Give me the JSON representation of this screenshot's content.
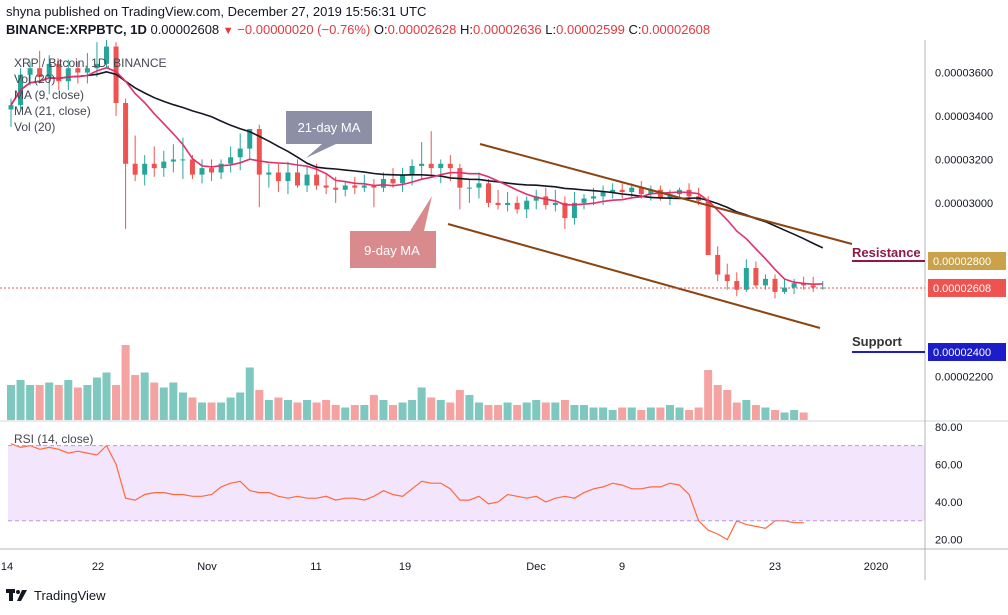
{
  "header": {
    "published": "shyna published on TradingView.com, December 27, 2019 15:56:31 UTC",
    "symbol": "BINANCE:XRPBTC, 1D",
    "last": "0.00002608",
    "change": "−0.00000020 (−0.76%)",
    "o_label": "O:",
    "o": "0.00002628",
    "h_label": "H:",
    "h": "0.00002636",
    "l_label": "L:",
    "l": "0.00002599",
    "c_label": "C:",
    "c": "0.00002608"
  },
  "indicators": {
    "title": "XRP / Bitcoin, 1D, BINANCE",
    "vol1": "Vol (20)",
    "ma9": "MA (9, close)",
    "ma21": "MA (21, close)",
    "vol2": "Vol (20)",
    "rsi": "RSI (14, close)"
  },
  "annotations": {
    "ma21_label": "21-day MA",
    "ma9_label": "9-day MA",
    "resistance": "Resistance",
    "support": "Support"
  },
  "price_axis": {
    "ticks": [
      "0.00003600",
      "0.00003400",
      "0.00003200",
      "0.00003000",
      "0.00002200"
    ],
    "resistance_price": "0.00002800",
    "last_price": "0.00002608",
    "support_price": "0.00002400"
  },
  "rsi_axis": {
    "ticks": [
      "80.00",
      "60.00",
      "40.00",
      "20.00"
    ]
  },
  "time_axis": {
    "ticks": [
      "14",
      "22",
      "Nov",
      "11",
      "19",
      "Dec",
      "9",
      "23",
      "2020"
    ]
  },
  "footer": {
    "brand": "TradingView"
  },
  "colors": {
    "up": "#26a69a",
    "down": "#ef5350",
    "ma9": "#e0306a",
    "ma21": "#131722",
    "channel": "#8b4513",
    "resistance": "#8b1a4a",
    "support": "#1c1cc8",
    "rsi_line": "#ff6a3d",
    "rsi_band": "#f3e5fc"
  },
  "chart_data": {
    "type": "candlestick",
    "symbol": "XRPBTC",
    "interval": "1D",
    "price_range": [
      2e-05,
      3.75e-05
    ],
    "x_axis_labels": [
      "14",
      "22",
      "Nov",
      "11",
      "19",
      "Dec",
      "9",
      "23",
      "2020"
    ],
    "candles_ohlc": [
      [
        3.43e-05,
        3.48e-05,
        3.35e-05,
        3.45e-05
      ],
      [
        3.45e-05,
        3.62e-05,
        3.43e-05,
        3.59e-05
      ],
      [
        3.59e-05,
        3.65e-05,
        3.54e-05,
        3.62e-05
      ],
      [
        3.62e-05,
        3.7e-05,
        3.55e-05,
        3.58e-05
      ],
      [
        3.58e-05,
        3.68e-05,
        3.5e-05,
        3.64e-05
      ],
      [
        3.64e-05,
        3.66e-05,
        3.52e-05,
        3.56e-05
      ],
      [
        3.56e-05,
        3.66e-05,
        3.52e-05,
        3.62e-05
      ],
      [
        3.62e-05,
        3.65e-05,
        3.55e-05,
        3.6e-05
      ],
      [
        3.6e-05,
        3.69e-05,
        3.55e-05,
        3.62e-05
      ],
      [
        3.62e-05,
        3.74e-05,
        3.58e-05,
        3.64e-05
      ],
      [
        3.64e-05,
        3.75e-05,
        3.62e-05,
        3.72e-05
      ],
      [
        3.72e-05,
        3.74e-05,
        3.4e-05,
        3.46e-05
      ],
      [
        3.46e-05,
        3.48e-05,
        2.88e-05,
        3.18e-05
      ],
      [
        3.18e-05,
        3.31e-05,
        3.1e-05,
        3.13e-05
      ],
      [
        3.13e-05,
        3.22e-05,
        3.08e-05,
        3.18e-05
      ],
      [
        3.18e-05,
        3.26e-05,
        3.12e-05,
        3.16e-05
      ],
      [
        3.16e-05,
        3.24e-05,
        3.12e-05,
        3.19e-05
      ],
      [
        3.19e-05,
        3.27e-05,
        3.14e-05,
        3.2e-05
      ],
      [
        3.2e-05,
        3.3e-05,
        3.11e-05,
        3.2e-05
      ],
      [
        3.2e-05,
        3.22e-05,
        3.11e-05,
        3.13e-05
      ],
      [
        3.13e-05,
        3.2e-05,
        3.09e-05,
        3.16e-05
      ],
      [
        3.16e-05,
        3.2e-05,
        3.1e-05,
        3.14e-05
      ],
      [
        3.14e-05,
        3.2e-05,
        3.11e-05,
        3.18e-05
      ],
      [
        3.18e-05,
        3.26e-05,
        3.14e-05,
        3.21e-05
      ],
      [
        3.21e-05,
        3.32e-05,
        3.15e-05,
        3.25e-05
      ],
      [
        3.25e-05,
        3.34e-05,
        3.2e-05,
        3.34e-05
      ],
      [
        3.34e-05,
        3.36e-05,
        2.98e-05,
        3.13e-05
      ],
      [
        3.13e-05,
        3.18e-05,
        3.07e-05,
        3.14e-05
      ],
      [
        3.14e-05,
        3.18e-05,
        3.05e-05,
        3.1e-05
      ],
      [
        3.1e-05,
        3.19e-05,
        3.04e-05,
        3.14e-05
      ],
      [
        3.14e-05,
        3.2e-05,
        3.07e-05,
        3.08e-05
      ],
      [
        3.08e-05,
        3.17e-05,
        3.05e-05,
        3.13e-05
      ],
      [
        3.13e-05,
        3.18e-05,
        3.06e-05,
        3.08e-05
      ],
      [
        3.08e-05,
        3.13e-05,
        3.04e-05,
        3.07e-05
      ],
      [
        3.07e-05,
        3.12e-05,
        3e-05,
        3.06e-05
      ],
      [
        3.06e-05,
        3.1e-05,
        3.03e-05,
        3.08e-05
      ],
      [
        3.08e-05,
        3.12e-05,
        3.04e-05,
        3.07e-05
      ],
      [
        3.07e-05,
        3.13e-05,
        3.05e-05,
        3.08e-05
      ],
      [
        3.08e-05,
        3.11e-05,
        2.98e-05,
        3.07e-05
      ],
      [
        3.07e-05,
        3.14e-05,
        3.05e-05,
        3.11e-05
      ],
      [
        3.11e-05,
        3.16e-05,
        3.07e-05,
        3.09e-05
      ],
      [
        3.09e-05,
        3.16e-05,
        3.05e-05,
        3.13e-05
      ],
      [
        3.13e-05,
        3.2e-05,
        3.08e-05,
        3.17e-05
      ],
      [
        3.17e-05,
        3.28e-05,
        3.11e-05,
        3.18e-05
      ],
      [
        3.18e-05,
        3.33e-05,
        3.13e-05,
        3.16e-05
      ],
      [
        3.16e-05,
        3.2e-05,
        3.09e-05,
        3.18e-05
      ],
      [
        3.18e-05,
        3.22e-05,
        3.1e-05,
        3.16e-05
      ],
      [
        3.16e-05,
        3.18e-05,
        2.97e-05,
        3.07e-05
      ],
      [
        3.07e-05,
        3.11e-05,
        3e-05,
        3.07e-05
      ],
      [
        3.07e-05,
        3.14e-05,
        3.02e-05,
        3.09e-05
      ],
      [
        3.09e-05,
        3.11e-05,
        2.98e-05,
        3e-05
      ],
      [
        3e-05,
        3.06e-05,
        2.97e-05,
        2.99e-05
      ],
      [
        2.99e-05,
        3.05e-05,
        2.96e-05,
        3e-05
      ],
      [
        3e-05,
        3.03e-05,
        2.95e-05,
        2.97e-05
      ],
      [
        2.97e-05,
        3.03e-05,
        2.93e-05,
        3.01e-05
      ],
      [
        3.01e-05,
        3.06e-05,
        2.97e-05,
        3.03e-05
      ],
      [
        3.03e-05,
        3.07e-05,
        2.97e-05,
        2.99e-05
      ],
      [
        2.99e-05,
        3.06e-05,
        2.96e-05,
        3e-05
      ],
      [
        3e-05,
        3.03e-05,
        2.88e-05,
        2.93e-05
      ],
      [
        2.93e-05,
        3.05e-05,
        2.9e-05,
        3e-05
      ],
      [
        3e-05,
        3.04e-05,
        2.97e-05,
        3.02e-05
      ],
      [
        3.02e-05,
        3.07e-05,
        2.99e-05,
        3.03e-05
      ],
      [
        3.03e-05,
        3.08e-05,
        2.99e-05,
        3.05e-05
      ],
      [
        3.05e-05,
        3.09e-05,
        3.02e-05,
        3.06e-05
      ],
      [
        3.06e-05,
        3.09e-05,
        3.02e-05,
        3.05e-05
      ],
      [
        3.05e-05,
        3.09e-05,
        3.02e-05,
        3.07e-05
      ],
      [
        3.07e-05,
        3.1e-05,
        3.02e-05,
        3.04e-05
      ],
      [
        3.04e-05,
        3.08e-05,
        3.01e-05,
        3.06e-05
      ],
      [
        3.06e-05,
        3.08e-05,
        3.01e-05,
        3.02e-05
      ],
      [
        3.02e-05,
        3.06e-05,
        2.99e-05,
        3.04e-05
      ],
      [
        3.04e-05,
        3.07e-05,
        3.02e-05,
        3.06e-05
      ],
      [
        3.06e-05,
        3.09e-05,
        3.02e-05,
        3.03e-05
      ],
      [
        3.03e-05,
        3.07e-05,
        2.99e-05,
        3.01e-05
      ],
      [
        3.01e-05,
        3.03e-05,
        2.76e-05,
        2.76e-05
      ],
      [
        2.76e-05,
        2.8e-05,
        2.64e-05,
        2.67e-05
      ],
      [
        2.67e-05,
        2.72e-05,
        2.6e-05,
        2.64e-05
      ],
      [
        2.64e-05,
        2.68e-05,
        2.57e-05,
        2.6e-05
      ],
      [
        2.6e-05,
        2.74e-05,
        2.59e-05,
        2.7e-05
      ],
      [
        2.7e-05,
        2.73e-05,
        2.61e-05,
        2.62e-05
      ],
      [
        2.62e-05,
        2.67e-05,
        2.6e-05,
        2.65e-05
      ],
      [
        2.65e-05,
        2.67e-05,
        2.56e-05,
        2.59e-05
      ],
      [
        2.59e-05,
        2.65e-05,
        2.58e-05,
        2.61e-05
      ],
      [
        2.61e-05,
        2.65e-05,
        2.58e-05,
        2.63e-05
      ],
      [
        2.63e-05,
        2.66e-05,
        2.6e-05,
        2.62e-05
      ],
      [
        2.62e-05,
        2.66e-05,
        2.59e-05,
        2.61e-05
      ],
      [
        2.61e-05,
        2.64e-05,
        2.6e-05,
        2.61e-05
      ]
    ],
    "volume": [
      14,
      16,
      14,
      14,
      15,
      14,
      16,
      13,
      14,
      17,
      19,
      14,
      30,
      18,
      19,
      15,
      13,
      15,
      11,
      9,
      7,
      7,
      7,
      9,
      11,
      21,
      12,
      8,
      9,
      8,
      7,
      8,
      7,
      8,
      6,
      5,
      6,
      6,
      10,
      8,
      6,
      7,
      8,
      13,
      9,
      8,
      7,
      12,
      10,
      7,
      6,
      6,
      7,
      6,
      7,
      8,
      7,
      7,
      8,
      6,
      6,
      5,
      5,
      4,
      5,
      5,
      4,
      5,
      5,
      6,
      5,
      4,
      5,
      20,
      14,
      12,
      7,
      8,
      6,
      5,
      4,
      3,
      4,
      3
    ],
    "rsi": [
      71,
      69,
      70,
      68,
      69,
      68,
      66,
      67,
      66,
      65,
      70,
      60,
      42,
      41,
      44,
      45,
      45,
      44,
      44,
      43,
      43,
      44,
      48,
      50,
      51,
      46,
      45,
      45,
      43,
      42,
      43,
      42,
      42,
      43,
      41,
      42,
      42,
      41,
      43,
      46,
      44,
      43,
      47,
      51,
      50,
      50,
      47,
      41,
      41,
      43,
      39,
      40,
      44,
      43,
      42,
      43,
      40,
      42,
      43,
      42,
      45,
      47,
      48,
      50,
      49,
      47,
      47,
      48,
      48,
      50,
      49,
      44,
      30,
      25,
      23,
      20,
      30,
      28,
      27,
      26,
      30,
      30,
      29,
      29
    ],
    "rsi_range": [
      15,
      82
    ],
    "rsi_band": [
      30,
      70
    ],
    "ma9": [],
    "ma21": [],
    "levels": {
      "resistance": 2.8e-05,
      "support": 2.4e-05,
      "last": 2.608e-05
    }
  }
}
